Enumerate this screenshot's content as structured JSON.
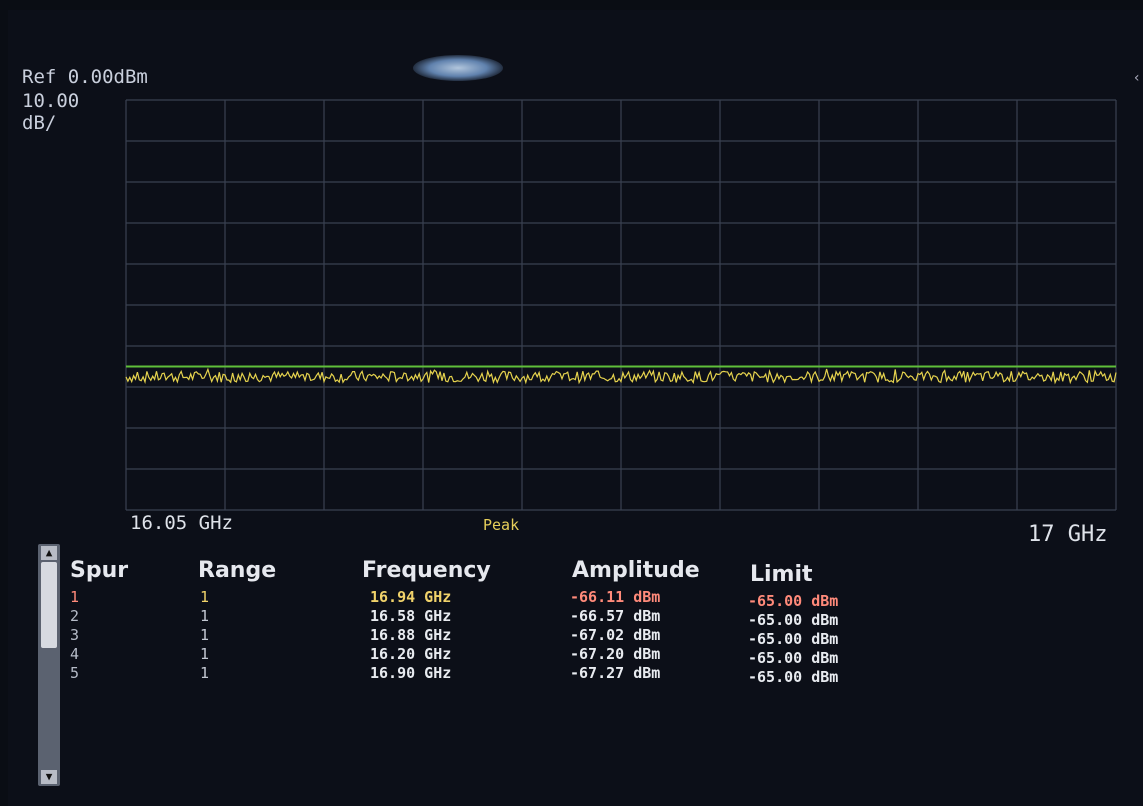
{
  "header": {
    "ref_level": "Ref 0.00dBm",
    "scale_value": "10.00",
    "scale_unit": "dB/"
  },
  "trace": {
    "start_freq_label": "16.05 GHz",
    "stop_freq_label": "17 GHz",
    "detector_label": "Peak",
    "start_freq_ghz": 16.05,
    "stop_freq_ghz": 17.0,
    "ref_level_dbm": 0.0,
    "scale_db_per_div": 10.0,
    "divisions": 10,
    "limit_line_dbm": -65.0,
    "noise_floor_dbm": -67.5,
    "limit_color": "#5fbf3a",
    "trace_color": "#e6d34e",
    "grid_color": "#3a4150"
  },
  "spur_table": {
    "headers": {
      "spur": "Spur",
      "range": "Range",
      "frequency": "Frequency",
      "amplitude": "Amplitude",
      "limit": "Limit"
    },
    "rows": [
      {
        "spur": "1",
        "range": "1",
        "frequency": "16.94 GHz",
        "amplitude": "-66.11 dBm",
        "limit": "-65.00 dBm"
      },
      {
        "spur": "2",
        "range": "1",
        "frequency": "16.58 GHz",
        "amplitude": "-66.57 dBm",
        "limit": "-65.00 dBm"
      },
      {
        "spur": "3",
        "range": "1",
        "frequency": "16.88 GHz",
        "amplitude": "-67.02 dBm",
        "limit": "-65.00 dBm"
      },
      {
        "spur": "4",
        "range": "1",
        "frequency": "16.20 GHz",
        "amplitude": "-67.20 dBm",
        "limit": "-65.00 dBm"
      },
      {
        "spur": "5",
        "range": "1",
        "frequency": "16.90 GHz",
        "amplitude": "-67.27 dBm",
        "limit": "-65.00 dBm"
      }
    ]
  },
  "icons": {
    "scroll_up": "up-arrow-icon",
    "scroll_down": "down-arrow-icon",
    "side_marker": "chevron-left-icon"
  }
}
